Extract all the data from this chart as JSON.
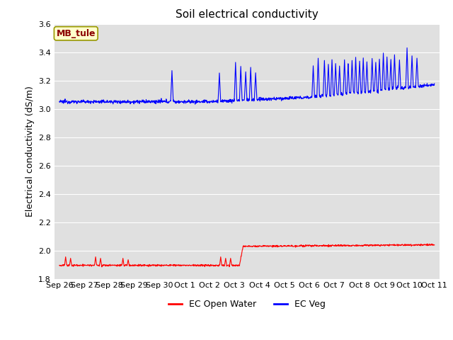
{
  "title": "Soil electrical conductivity",
  "ylabel": "Electrical conductivity (dS/m)",
  "ylim": [
    1.8,
    3.6
  ],
  "yticks": [
    1.8,
    2.0,
    2.2,
    2.4,
    2.6,
    2.8,
    3.0,
    3.2,
    3.4,
    3.6
  ],
  "xtick_labels": [
    "Sep 26",
    "Sep 27",
    "Sep 28",
    "Sep 29",
    "Sep 30",
    "Oct 1",
    "Oct 2",
    "Oct 3",
    "Oct 4",
    "Oct 5",
    "Oct 6",
    "Oct 7",
    "Oct 8",
    "Oct 9",
    "Oct 10",
    "Oct 11"
  ],
  "legend_labels": [
    "EC Open Water",
    "EC Veg"
  ],
  "legend_colors": [
    "red",
    "blue"
  ],
  "annotation_text": "MB_tule",
  "annotation_color": "#8B0000",
  "annotation_bg": "#ffffcc",
  "annotation_edge": "#999900",
  "plot_bg_color": "#e0e0e0",
  "fig_bg_color": "#ffffff",
  "line_color_red": "red",
  "line_color_blue": "blue",
  "line_width": 0.8,
  "grid_color": "#ffffff",
  "title_fontsize": 11,
  "label_fontsize": 9,
  "tick_fontsize": 8
}
